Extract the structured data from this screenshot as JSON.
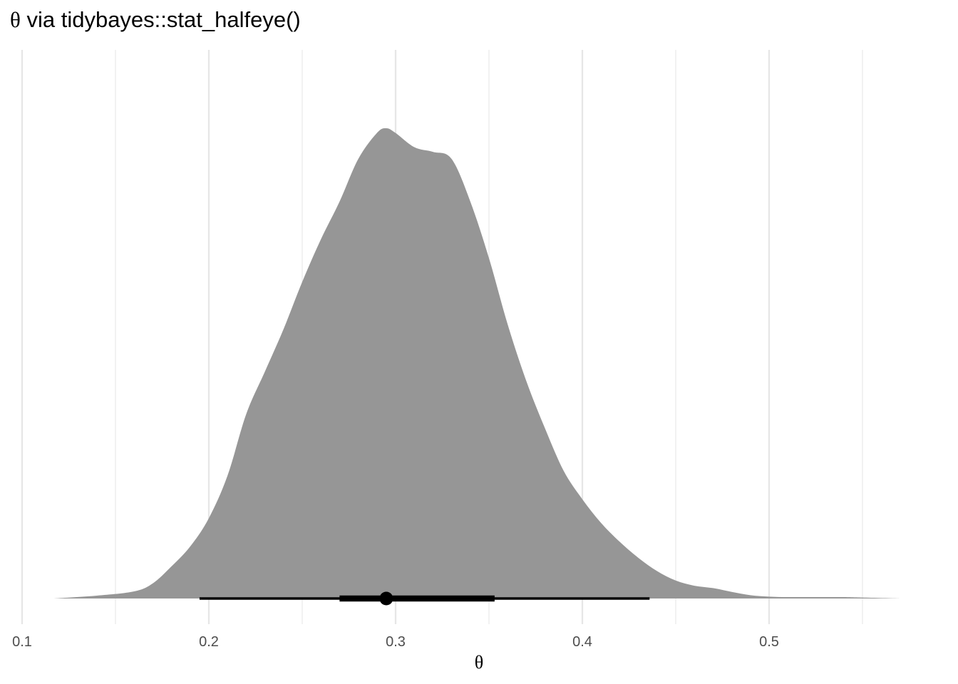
{
  "chart_data": {
    "type": "area",
    "title": "θ via tidybayes::stat_halfeye()",
    "xlabel": "θ",
    "ylabel": "",
    "xlim": [
      0.1,
      0.55
    ],
    "x_ticks": [
      0.1,
      0.2,
      0.3,
      0.4,
      0.5
    ],
    "x_tick_labels": [
      "0.1",
      "0.2",
      "0.3",
      "0.4",
      "0.5"
    ],
    "minor_x_ticks": [
      0.15,
      0.25,
      0.35,
      0.45,
      0.55
    ],
    "grid": "vertical",
    "density": {
      "x": [
        0.117,
        0.14,
        0.16,
        0.17,
        0.18,
        0.19,
        0.2,
        0.21,
        0.22,
        0.23,
        0.24,
        0.25,
        0.26,
        0.27,
        0.28,
        0.29,
        0.295,
        0.3,
        0.31,
        0.32,
        0.33,
        0.34,
        0.35,
        0.36,
        0.37,
        0.38,
        0.39,
        0.4,
        0.41,
        0.42,
        0.43,
        0.44,
        0.45,
        0.46,
        0.47,
        0.48,
        0.49,
        0.5,
        0.51,
        0.52,
        0.53,
        0.54,
        0.55,
        0.57
      ],
      "y": [
        0.0,
        0.006,
        0.015,
        0.032,
        0.068,
        0.11,
        0.17,
        0.26,
        0.39,
        0.48,
        0.57,
        0.67,
        0.76,
        0.84,
        0.93,
        0.985,
        0.995,
        0.985,
        0.955,
        0.945,
        0.93,
        0.84,
        0.72,
        0.58,
        0.46,
        0.36,
        0.27,
        0.21,
        0.16,
        0.12,
        0.086,
        0.058,
        0.038,
        0.027,
        0.022,
        0.014,
        0.007,
        0.004,
        0.003,
        0.003,
        0.003,
        0.003,
        0.002,
        0.0
      ],
      "fill": "#969696"
    },
    "point_interval": {
      "point": 0.295,
      "interval_66": [
        0.27,
        0.353
      ],
      "interval_95": [
        0.195,
        0.436
      ],
      "color": "#000000"
    }
  }
}
